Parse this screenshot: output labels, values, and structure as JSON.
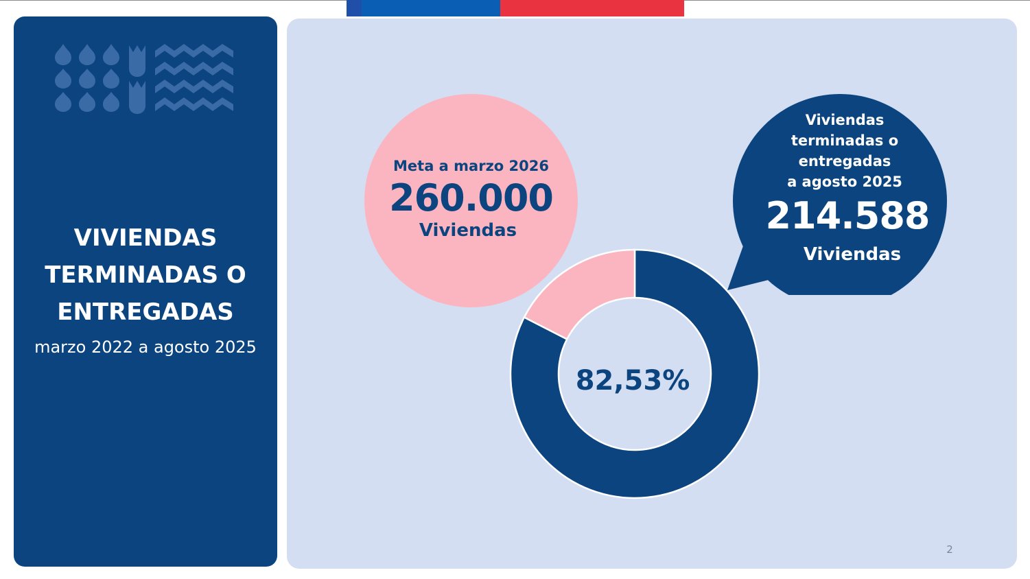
{
  "colors": {
    "navy": "#0b447e",
    "pink": "#fbb5c1",
    "panel_bg": "#d3def2",
    "flag_blue": "#0a5fb4",
    "flag_red": "#ea3340"
  },
  "sidebar": {
    "title_lines": [
      "VIVIENDAS",
      "TERMINADAS O",
      "ENTREGADAS"
    ],
    "subtitle": "marzo 2022 a agosto 2025",
    "motif_icon": "wheat-and-waves-pattern-icon"
  },
  "goal": {
    "label": "Meta a marzo 2026",
    "value": "260.000",
    "unit": "Viviendas"
  },
  "achieved": {
    "label_lines": [
      "Viviendas",
      "terminadas o",
      "entregadas",
      "a agosto 2025"
    ],
    "value": "214.588",
    "unit": "Viviendas"
  },
  "chart_data": {
    "type": "pie",
    "variant": "donut",
    "center_label": "82,53%",
    "slices": [
      {
        "value": 214588,
        "percent": 82.53,
        "color": "#0b447e"
      },
      {
        "value": 45412,
        "percent": 17.47,
        "color": "#fbb5c1"
      }
    ],
    "start_angle_deg": 0,
    "direction": "clockwise"
  },
  "footer": {
    "page_number": "2"
  }
}
